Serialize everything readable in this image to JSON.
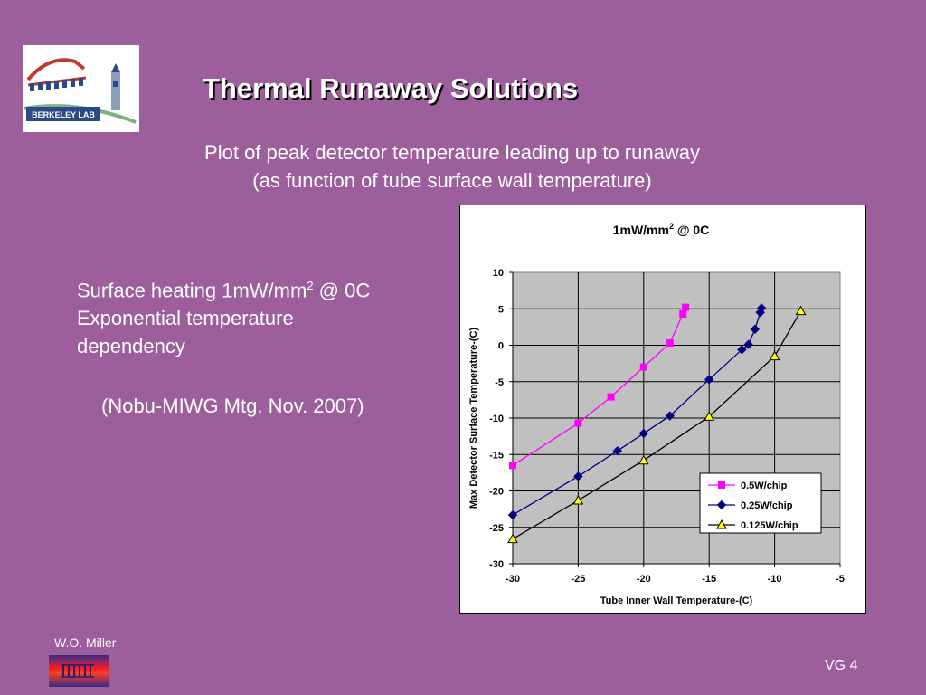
{
  "slide": {
    "title": "Thermal Runaway Solutions",
    "subtitle_line1": "Plot of peak detector temperature leading up to runaway",
    "subtitle_line2": "(as function of tube surface wall temperature)",
    "bullets": {
      "line1_text": "Surface heating 1mW/mm",
      "line1_sup": "2",
      "line1_tail": " @ 0C",
      "line2": "Exponential temperature",
      "line3": "dependency"
    },
    "citation": "(Nobu-MIWG Mtg. Nov. 2007)",
    "author": "W.O. Miller",
    "slide_number": "VG 4",
    "logo_text": "BERKELEY LAB",
    "colors": {
      "background": "#9d5f9c",
      "logo_red": "#c0392b",
      "logo_blue": "#2a4a8a"
    }
  },
  "chart_data": {
    "type": "line",
    "title_main": "1mW/mm",
    "title_sup": "2",
    "title_tail": " @ 0C",
    "xlabel": "Tube Inner Wall Temperature-(C)",
    "ylabel": "Max Detector Surface Temperature-(C)",
    "xlim": [
      -30,
      -5
    ],
    "ylim": [
      -30,
      10
    ],
    "xticks": [
      "-30",
      "-25",
      "-20",
      "-15",
      "-10",
      "-5"
    ],
    "yticks": [
      "10",
      "5",
      "0",
      "-5",
      "-10",
      "-15",
      "-20",
      "-25",
      "-30"
    ],
    "grid": true,
    "plot_background": "#c0c0c0",
    "legend_position": "bottom-right",
    "series": [
      {
        "name": "0.5W/chip",
        "color": "#ff00ff",
        "marker": "square",
        "x": [
          -30,
          -25,
          -22.5,
          -20,
          -18,
          -17,
          -16.8
        ],
        "y": [
          -16.5,
          -10.7,
          -7.1,
          -3,
          0.3,
          4.3,
          5.2
        ]
      },
      {
        "name": "0.25W/chip",
        "color": "#000080",
        "marker": "diamond",
        "x": [
          -30,
          -25,
          -22,
          -20,
          -18,
          -15,
          -12.5,
          -12,
          -11.5,
          -11.1,
          -11
        ],
        "y": [
          -23.3,
          -18,
          -14.5,
          -12.1,
          -9.7,
          -4.7,
          -0.6,
          0.1,
          2.2,
          4.5,
          5.1
        ]
      },
      {
        "name": "0.125W/chip",
        "color": "#000000",
        "marker": "triangle",
        "marker_fill": "#ffff00",
        "x": [
          -30,
          -25,
          -20,
          -15,
          -10,
          -8
        ],
        "y": [
          -26.6,
          -21.3,
          -15.8,
          -9.8,
          -1.5,
          4.7
        ]
      }
    ]
  }
}
